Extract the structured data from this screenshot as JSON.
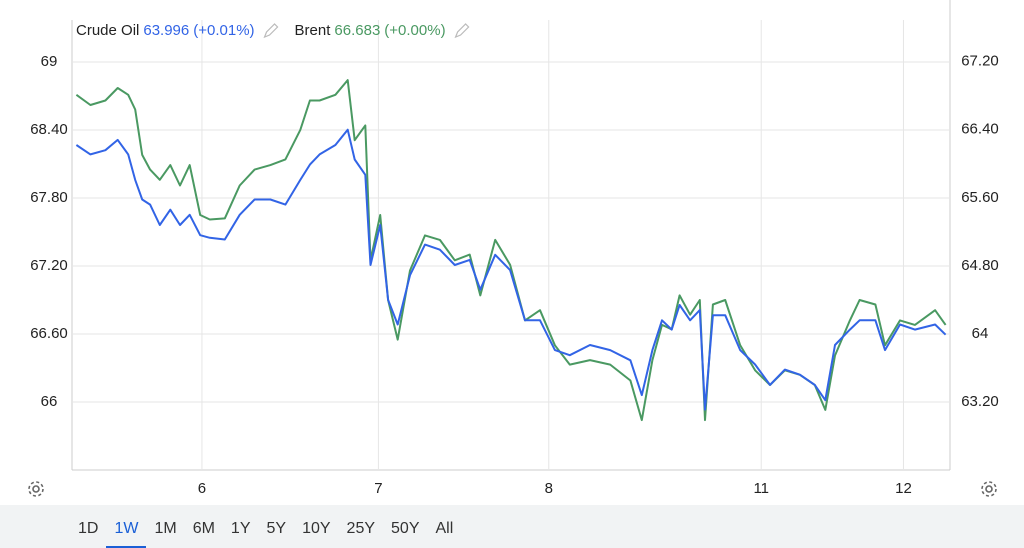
{
  "chart_data": {
    "type": "line",
    "series": [
      {
        "name": "Crude Oil",
        "last": 63.996,
        "change": "(+0.01%)",
        "color": "#3264e6",
        "axis": "y2",
        "x": [
          0.5,
          2.1,
          3.8,
          5.2,
          6.4,
          7.2,
          8.0,
          8.9,
          10.0,
          11.2,
          12.3,
          13.4,
          14.6,
          15.7,
          17.4,
          19.1,
          20.8,
          22.6,
          24.3,
          26.0,
          27.1,
          28.2,
          30.0,
          31.4,
          32.2,
          33.4,
          34.0,
          35.1,
          36.0,
          37.1,
          38.5,
          40.2,
          41.9,
          43.6,
          45.3,
          46.5,
          48.2,
          49.9,
          51.6,
          53.3,
          55.0,
          56.7,
          59.0,
          61.3,
          63.6,
          64.9,
          66.1,
          67.2,
          68.3,
          69.2,
          70.4,
          71.5,
          72.1,
          73.0,
          74.4,
          76.1,
          77.8,
          79.5,
          81.2,
          82.9,
          84.6,
          85.8,
          86.9,
          88.6,
          89.7,
          91.5,
          92.6,
          94.3,
          96.0,
          98.3,
          99.5
        ],
        "values": [
          66.22,
          66.11,
          66.16,
          66.28,
          66.11,
          65.81,
          65.58,
          65.52,
          65.28,
          65.46,
          65.28,
          65.4,
          65.16,
          65.13,
          65.11,
          65.4,
          65.58,
          65.58,
          65.52,
          65.81,
          65.99,
          66.11,
          66.22,
          66.4,
          66.05,
          65.87,
          64.81,
          65.28,
          64.4,
          64.11,
          64.69,
          65.05,
          64.99,
          64.81,
          64.87,
          64.52,
          64.93,
          64.75,
          64.16,
          64.16,
          63.81,
          63.75,
          63.87,
          63.81,
          63.69,
          63.28,
          63.81,
          64.16,
          64.05,
          64.34,
          64.16,
          64.28,
          63.11,
          64.22,
          64.22,
          63.81,
          63.64,
          63.4,
          63.58,
          63.52,
          63.4,
          63.22,
          63.87,
          64.05,
          64.16,
          64.16,
          63.81,
          64.11,
          64.05,
          64.11,
          63.99
        ]
      },
      {
        "name": "Brent",
        "last": 66.683,
        "change": "(+0.00%)",
        "color": "#4a9962",
        "x": [
          0.5,
          2.1,
          3.8,
          5.2,
          6.4,
          7.2,
          8.0,
          8.9,
          10.0,
          11.2,
          12.3,
          13.4,
          14.6,
          15.7,
          17.4,
          19.1,
          20.8,
          22.6,
          24.3,
          26.0,
          27.1,
          28.2,
          30.0,
          31.4,
          32.2,
          33.4,
          34.0,
          35.1,
          36.0,
          37.1,
          38.5,
          40.2,
          41.9,
          43.6,
          45.3,
          46.5,
          48.2,
          49.9,
          51.6,
          53.3,
          55.0,
          56.7,
          59.0,
          61.3,
          63.6,
          64.9,
          66.1,
          67.2,
          68.3,
          69.2,
          70.4,
          71.5,
          72.1,
          73.0,
          74.4,
          76.1,
          77.8,
          79.5,
          81.2,
          82.9,
          84.6,
          85.8,
          86.9,
          88.6,
          89.7,
          91.5,
          92.6,
          94.3,
          96.0,
          98.3,
          99.5
        ],
        "values": [
          68.71,
          68.62,
          68.66,
          68.77,
          68.71,
          68.58,
          68.18,
          68.05,
          67.96,
          68.09,
          67.91,
          68.09,
          67.65,
          67.61,
          67.62,
          67.91,
          68.05,
          68.09,
          68.14,
          68.4,
          68.66,
          68.66,
          68.71,
          68.84,
          68.31,
          68.44,
          67.25,
          67.65,
          66.9,
          66.55,
          67.16,
          67.47,
          67.43,
          67.25,
          67.3,
          66.94,
          67.43,
          67.21,
          66.72,
          66.81,
          66.5,
          66.33,
          66.37,
          66.33,
          66.19,
          65.84,
          66.37,
          66.68,
          66.64,
          66.94,
          66.77,
          66.9,
          65.84,
          66.86,
          66.9,
          66.5,
          66.28,
          66.15,
          66.28,
          66.24,
          66.15,
          65.93,
          66.41,
          66.72,
          66.9,
          66.86,
          66.5,
          66.72,
          66.68,
          66.81,
          66.68
        ]
      }
    ],
    "xlim": [
      0,
      100
    ],
    "xticks": [
      {
        "value": 14.8,
        "label": "6"
      },
      {
        "value": 34.9,
        "label": "7"
      },
      {
        "value": 54.3,
        "label": "8"
      },
      {
        "value": 78.5,
        "label": "11"
      },
      {
        "value": 94.7,
        "label": "12"
      }
    ],
    "ylim": [
      65.4,
      69.37
    ],
    "yticks": [
      66,
      {
        "value": 66.6,
        "label": "66.60"
      },
      {
        "value": 67.2,
        "label": "67.20"
      },
      {
        "value": 67.8,
        "label": "67.80"
      },
      {
        "value": 68.4,
        "label": "68.40"
      },
      69
    ],
    "y2lim": [
      62.4,
      67.69
    ],
    "y2ticks": [
      {
        "value": 63.2,
        "label": "63.20"
      },
      64,
      {
        "value": 64.8,
        "label": "64.80"
      },
      {
        "value": 65.6,
        "label": "65.60"
      },
      {
        "value": 66.4,
        "label": "66.40"
      },
      {
        "value": 67.2,
        "label": "67.20"
      }
    ],
    "grid": true
  },
  "range_buttons": [
    "1D",
    "1W",
    "1M",
    "6M",
    "1Y",
    "5Y",
    "10Y",
    "25Y",
    "50Y",
    "All"
  ],
  "selected_range": "1W"
}
